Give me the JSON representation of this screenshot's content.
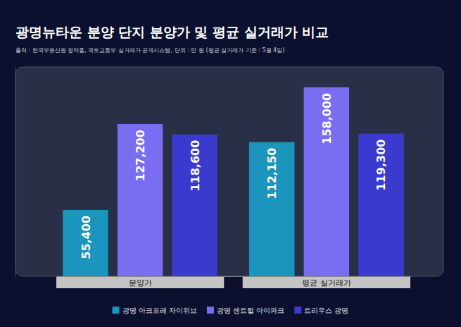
{
  "chart_data": {
    "type": "bar",
    "title": "광명뉴타운 분양 단지 분양가 및 평균 실거래가 비교",
    "subtitle": "출처 : 한국부동산원 청약홈, 국토교통부 실거래가 공개시스템, 단위 : 만 원 (평균 실거래가 기준 : 5월 4일)",
    "categories": [
      "분양가",
      "평균 실거래가"
    ],
    "series": [
      {
        "name": "광명 아크포레 자이위브",
        "color": "#1b95bd",
        "values": [
          55400,
          112150
        ],
        "value_labels": [
          "55,400",
          "112,150"
        ]
      },
      {
        "name": "광명 센트럴 아이파크",
        "color": "#7a6df2",
        "values": [
          127200,
          158000
        ],
        "value_labels": [
          "127,200",
          "158,000"
        ]
      },
      {
        "name": "트리우스 광명",
        "color": "#3a3acf",
        "values": [
          118600,
          119300
        ],
        "value_labels": [
          "118,600",
          "119,300"
        ]
      }
    ],
    "ylim": [
      0,
      175000
    ],
    "grid": false,
    "legend": "bottom",
    "data_labels": true,
    "tick_labels": "x"
  }
}
